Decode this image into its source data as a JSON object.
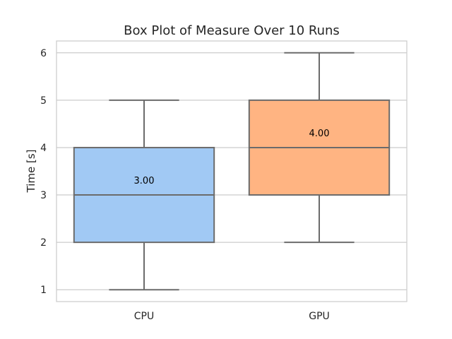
{
  "chart_data": {
    "type": "box",
    "title": "Box Plot of Measure Over 10 Runs",
    "xlabel": "",
    "ylabel": "Time [s]",
    "ylim": [
      0.75,
      6.25
    ],
    "yticks": [
      1,
      2,
      3,
      4,
      5,
      6
    ],
    "grid": true,
    "categories": [
      "CPU",
      "GPU"
    ],
    "boxes": [
      {
        "category": "CPU",
        "whisker_low": 1,
        "q1": 2,
        "median": 3,
        "q3": 4,
        "whisker_high": 5,
        "median_label": "3.00",
        "color": "#a1c9f4"
      },
      {
        "category": "GPU",
        "whisker_low": 2,
        "q1": 3,
        "median": 4,
        "q3": 5,
        "whisker_high": 6,
        "median_label": "4.00",
        "color": "#ffb482"
      }
    ]
  },
  "colors": {
    "line": "#6b6b6b",
    "grid": "#cccccc",
    "spine": "#cccccc"
  }
}
